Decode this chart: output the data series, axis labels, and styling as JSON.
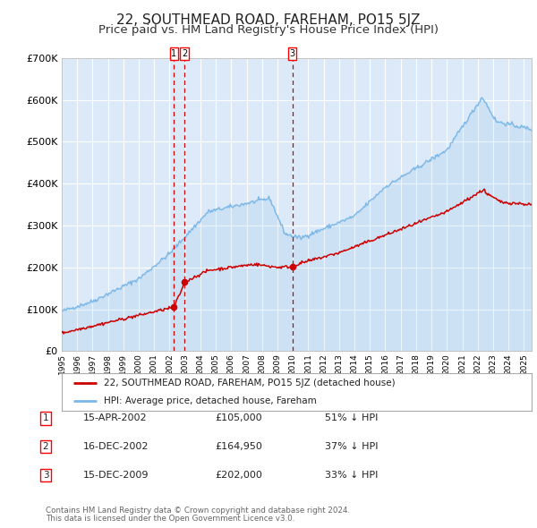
{
  "title": "22, SOUTHMEAD ROAD, FAREHAM, PO15 5JZ",
  "subtitle": "Price paid vs. HM Land Registry's House Price Index (HPI)",
  "x_start_year": 1995.0,
  "x_end_year": 2025.5,
  "y_min": 0,
  "y_max": 700000,
  "yticks": [
    0,
    100000,
    200000,
    300000,
    400000,
    500000,
    600000,
    700000
  ],
  "ytick_labels": [
    "£0",
    "£100K",
    "£200K",
    "£300K",
    "£400K",
    "£500K",
    "£600K",
    "£700K"
  ],
  "background_color": "#dce9f8",
  "grid_color": "#ffffff",
  "hpi_line_color": "#7bb8e8",
  "price_line_color": "#cc0000",
  "sale_marker_color": "#cc0000",
  "dashed_line_color": "#cc0000",
  "transactions": [
    {
      "label": "1",
      "date_str": "15-APR-2002",
      "year": 2002.29,
      "price": 105000,
      "pct": "51%",
      "dir": "↓"
    },
    {
      "label": "2",
      "date_str": "16-DEC-2002",
      "year": 2002.96,
      "price": 164950,
      "pct": "37%",
      "dir": "↓"
    },
    {
      "label": "3",
      "date_str": "15-DEC-2009",
      "year": 2009.96,
      "price": 202000,
      "pct": "33%",
      "dir": "↓"
    }
  ],
  "legend_line1": "22, SOUTHMEAD ROAD, FAREHAM, PO15 5JZ (detached house)",
  "legend_line2": "HPI: Average price, detached house, Fareham",
  "footer1": "Contains HM Land Registry data © Crown copyright and database right 2024.",
  "footer2": "This data is licensed under the Open Government Licence v3.0.",
  "title_fontsize": 11,
  "subtitle_fontsize": 9.5
}
